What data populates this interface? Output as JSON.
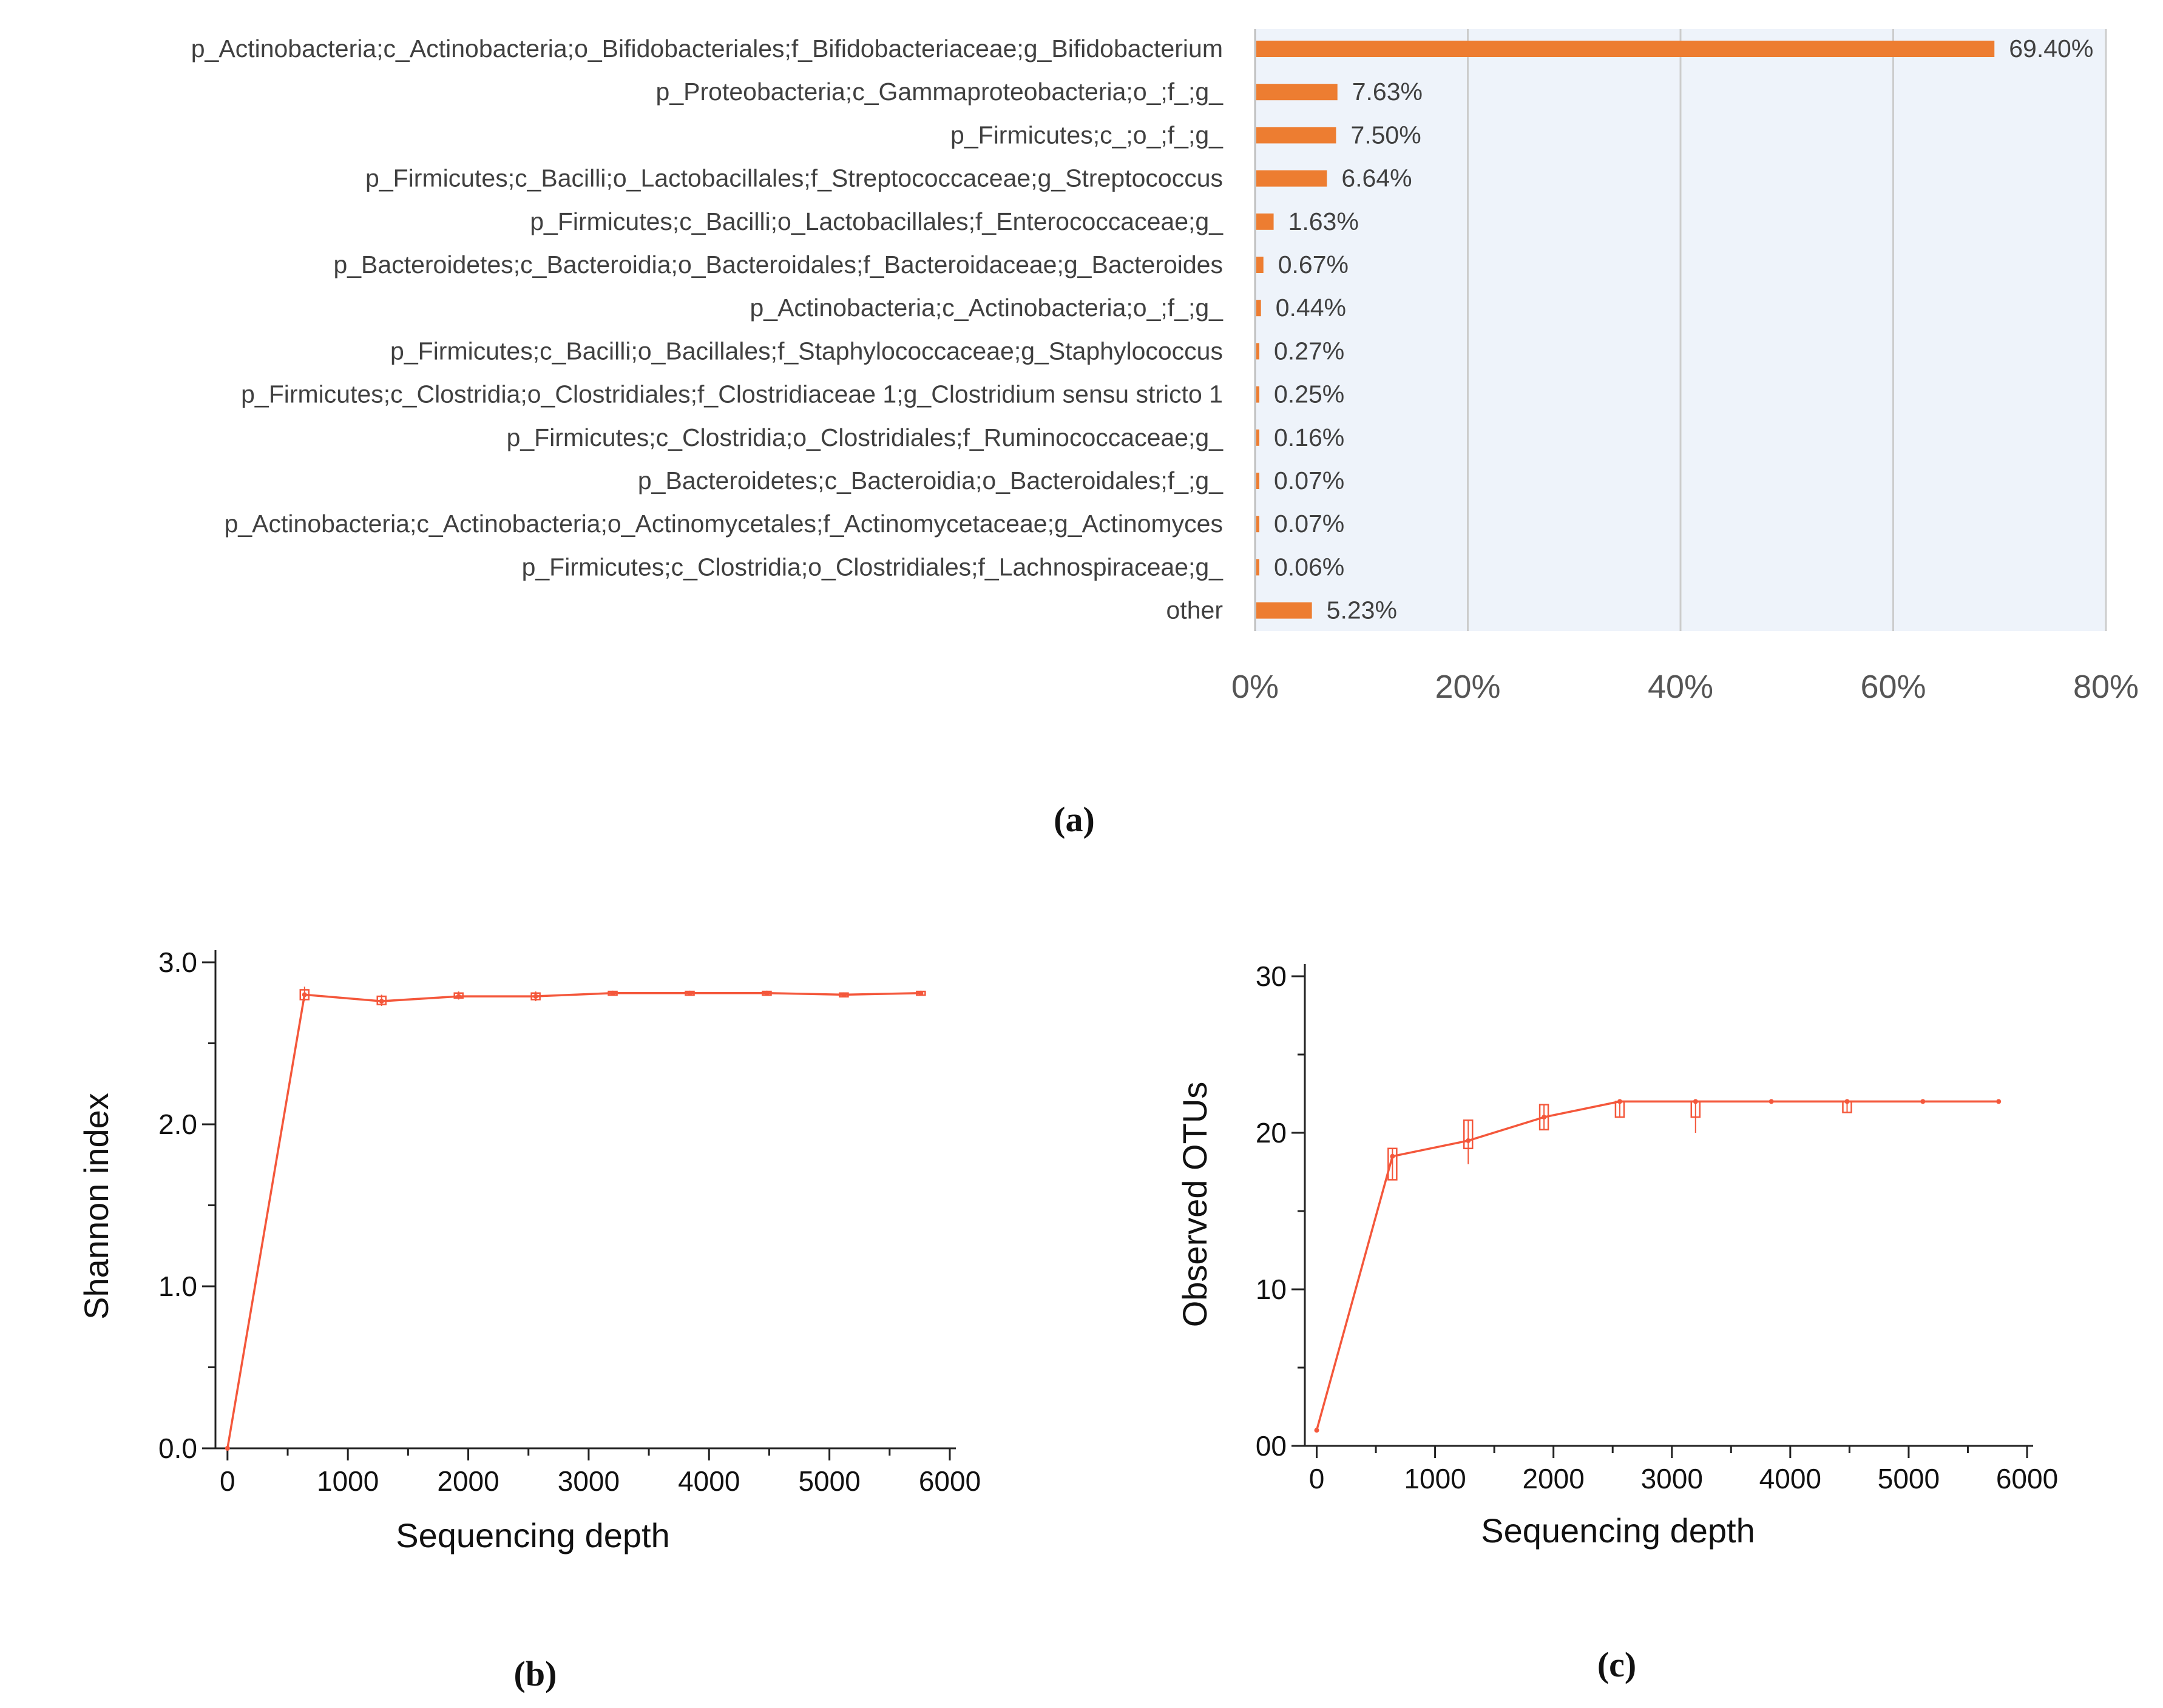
{
  "figure": {
    "panel_labels": {
      "a": "(a)",
      "b": "(b)",
      "c": "(c)"
    }
  },
  "colors": {
    "bar": "#ED7D31",
    "plot_bg": "#EEF3FA",
    "grid": "#CCCCCC",
    "line": "#F4573B"
  },
  "chart_data": [
    {
      "id": "a",
      "type": "bar",
      "orientation": "horizontal",
      "categories": [
        "p_Actinobacteria;c_Actinobacteria;o_Bifidobacteriales;f_Bifidobacteriaceae;g_Bifidobacterium",
        "p_Proteobacteria;c_Gammaproteobacteria;o_;f_;g_",
        "p_Firmicutes;c_;o_;f_;g_",
        "p_Firmicutes;c_Bacilli;o_Lactobacillales;f_Streptococcaceae;g_Streptococcus",
        "p_Firmicutes;c_Bacilli;o_Lactobacillales;f_Enterococcaceae;g_",
        "p_Bacteroidetes;c_Bacteroidia;o_Bacteroidales;f_Bacteroidaceae;g_Bacteroides",
        "p_Actinobacteria;c_Actinobacteria;o_;f_;g_",
        "p_Firmicutes;c_Bacilli;o_Bacillales;f_Staphylococcaceae;g_Staphylococcus",
        "p_Firmicutes;c_Clostridia;o_Clostridiales;f_Clostridiaceae 1;g_Clostridium sensu stricto 1",
        "p_Firmicutes;c_Clostridia;o_Clostridiales;f_Ruminococcaceae;g_",
        "p_Bacteroidetes;c_Bacteroidia;o_Bacteroidales;f_;g_",
        "p_Actinobacteria;c_Actinobacteria;o_Actinomycetales;f_Actinomycetaceae;g_Actinomyces",
        "p_Firmicutes;c_Clostridia;o_Clostridiales;f_Lachnospiraceae;g_",
        "other"
      ],
      "values": [
        69.4,
        7.63,
        7.5,
        6.64,
        1.63,
        0.67,
        0.44,
        0.27,
        0.25,
        0.16,
        0.07,
        0.07,
        0.06,
        5.23
      ],
      "value_labels": [
        "69.40%",
        "7.63%",
        "7.50%",
        "6.64%",
        "1.63%",
        "0.67%",
        "0.44%",
        "0.27%",
        "0.25%",
        "0.16%",
        "0.07%",
        "0.07%",
        "0.06%",
        "5.23%"
      ],
      "xlim": [
        0,
        80
      ],
      "xticks": [
        0,
        20,
        40,
        60,
        80
      ],
      "xtick_labels": [
        "0%",
        "20%",
        "40%",
        "60%",
        "80%"
      ],
      "grid": true,
      "title": "",
      "xlabel": "",
      "ylabel": ""
    },
    {
      "id": "b",
      "type": "line",
      "x": [
        0,
        640,
        1280,
        1920,
        2560,
        3200,
        3840,
        4480,
        5120,
        5760
      ],
      "y": [
        0.0,
        2.8,
        2.76,
        2.79,
        2.79,
        2.81,
        2.81,
        2.81,
        2.8,
        2.81
      ],
      "boxes": [
        {
          "x": 640,
          "low": 2.77,
          "high": 2.83,
          "wlow": 2.76,
          "whigh": 2.85
        },
        {
          "x": 1280,
          "low": 2.74,
          "high": 2.79,
          "wlow": 2.73,
          "whigh": 2.8
        },
        {
          "x": 1920,
          "low": 2.78,
          "high": 2.81,
          "wlow": 2.77,
          "whigh": 2.82
        },
        {
          "x": 2560,
          "low": 2.77,
          "high": 2.81,
          "wlow": 2.76,
          "whigh": 2.82
        },
        {
          "x": 3200,
          "low": 2.8,
          "high": 2.82,
          "wlow": 2.8,
          "whigh": 2.82
        },
        {
          "x": 3840,
          "low": 2.8,
          "high": 2.82,
          "wlow": 2.8,
          "whigh": 2.82
        },
        {
          "x": 4480,
          "low": 2.8,
          "high": 2.82,
          "wlow": 2.8,
          "whigh": 2.82
        },
        {
          "x": 5120,
          "low": 2.79,
          "high": 2.81,
          "wlow": 2.79,
          "whigh": 2.81
        },
        {
          "x": 5760,
          "low": 2.8,
          "high": 2.82,
          "wlow": 2.8,
          "whigh": 2.82
        }
      ],
      "xlim": [
        -100,
        6000
      ],
      "ylim": [
        0,
        3.0
      ],
      "xticks": [
        0,
        1000,
        2000,
        3000,
        4000,
        5000,
        6000
      ],
      "xtick_labels": [
        "0",
        "1000",
        "2000",
        "3000",
        "4000",
        "5000",
        "6000"
      ],
      "yticks": [
        0,
        1.0,
        2.0,
        3.0
      ],
      "ytick_labels": [
        "0.0",
        "1.0",
        "2.0",
        "3.0"
      ],
      "xlabel": "Sequencing depth",
      "ylabel": "Shannon index",
      "title": ""
    },
    {
      "id": "c",
      "type": "line",
      "x": [
        0,
        640,
        1280,
        1920,
        2560,
        3200,
        3840,
        4480,
        5120,
        5760
      ],
      "y": [
        1.0,
        18.5,
        19.5,
        21.0,
        22.0,
        22.0,
        22.0,
        22.0,
        22.0,
        22.0
      ],
      "boxes": [
        {
          "x": 640,
          "low": 17.0,
          "high": 19.0,
          "wlow": 17.0,
          "whigh": 19.0
        },
        {
          "x": 1280,
          "low": 19.0,
          "high": 20.8,
          "wlow": 18.0,
          "whigh": 20.8
        },
        {
          "x": 1920,
          "low": 20.2,
          "high": 21.8,
          "wlow": 20.2,
          "whigh": 21.8
        },
        {
          "x": 2560,
          "low": 21.0,
          "high": 22.0,
          "wlow": 21.0,
          "whigh": 22.0
        },
        {
          "x": 3200,
          "low": 21.0,
          "high": 22.0,
          "wlow": 20.0,
          "whigh": 22.0
        },
        {
          "x": 4480,
          "low": 21.3,
          "high": 22.0,
          "wlow": 21.3,
          "whigh": 22.0
        }
      ],
      "xlim": [
        -100,
        6000
      ],
      "ylim": [
        0,
        30
      ],
      "xticks": [
        0,
        1000,
        2000,
        3000,
        4000,
        5000,
        6000
      ],
      "xtick_labels": [
        "0",
        "1000",
        "2000",
        "3000",
        "4000",
        "5000",
        "6000"
      ],
      "yticks": [
        0,
        10,
        20,
        30
      ],
      "ytick_labels": [
        "00",
        "10",
        "20",
        "30"
      ],
      "xlabel": "Sequencing depth",
      "ylabel": "Observed OTUs",
      "title": ""
    }
  ]
}
